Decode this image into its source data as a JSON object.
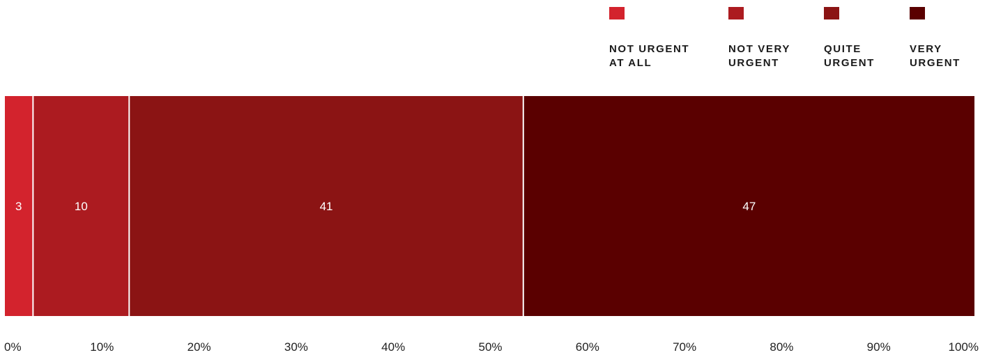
{
  "chart_data": {
    "type": "bar",
    "orientation": "horizontal",
    "stacked": true,
    "title": "",
    "xlabel": "",
    "ylabel": "",
    "xlim": [
      0,
      100
    ],
    "grid": false,
    "legend_position": "top-right",
    "series": [
      {
        "name": "NOT URGENT AT ALL",
        "values": [
          3
        ],
        "color": "#d3232d"
      },
      {
        "name": "NOT VERY URGENT",
        "values": [
          10
        ],
        "color": "#ac1b20"
      },
      {
        "name": "QUITE URGENT",
        "values": [
          41
        ],
        "color": "#8b1414"
      },
      {
        "name": "VERY URGENT",
        "values": [
          47
        ],
        "color": "#5a0000"
      }
    ],
    "data_labels": [
      "3",
      "10",
      "41",
      "47"
    ],
    "ticks": [
      "0%",
      "10%",
      "20%",
      "30%",
      "40%",
      "50%",
      "60%",
      "70%",
      "80%",
      "90%",
      "100%"
    ]
  },
  "legend": {
    "items": [
      {
        "line1": "NOT URGENT",
        "line2": "AT ALL"
      },
      {
        "line1": "NOT VERY",
        "line2": "URGENT"
      },
      {
        "line1": "QUITE",
        "line2": "URGENT"
      },
      {
        "line1": "VERY",
        "line2": "URGENT"
      }
    ]
  }
}
